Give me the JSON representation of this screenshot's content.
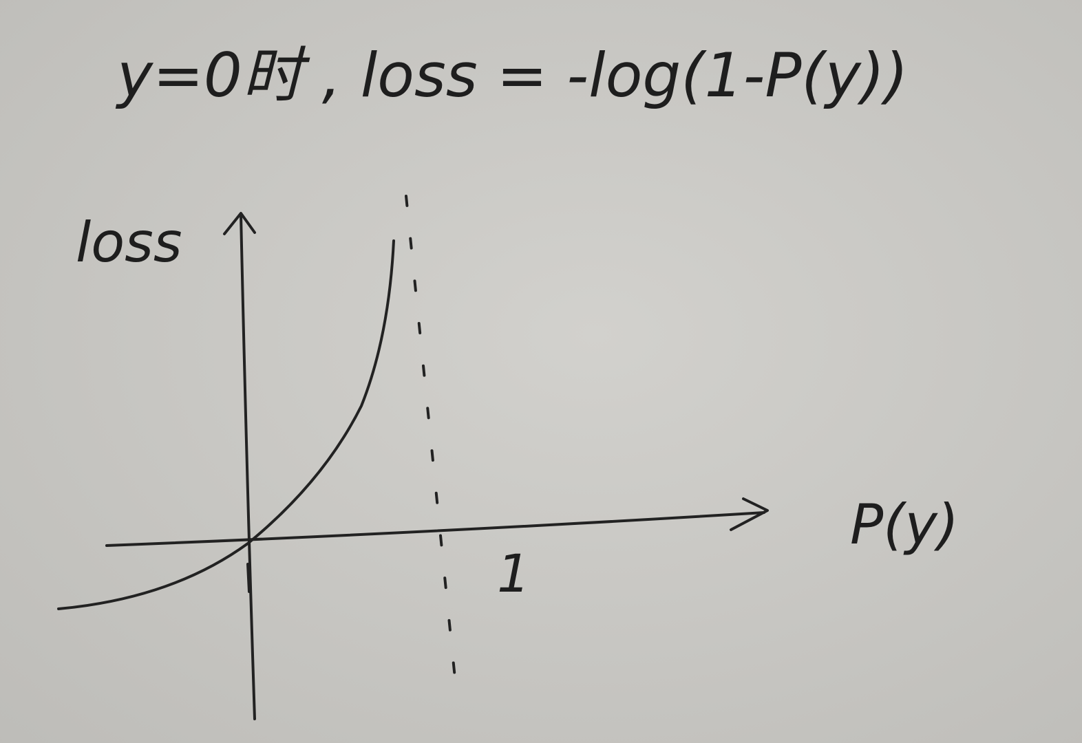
{
  "title": "y=0时 , loss = -log(1-P(y))",
  "axes": {
    "y_label": "loss",
    "x_label": "P(y)",
    "x_tick": "1"
  }
}
